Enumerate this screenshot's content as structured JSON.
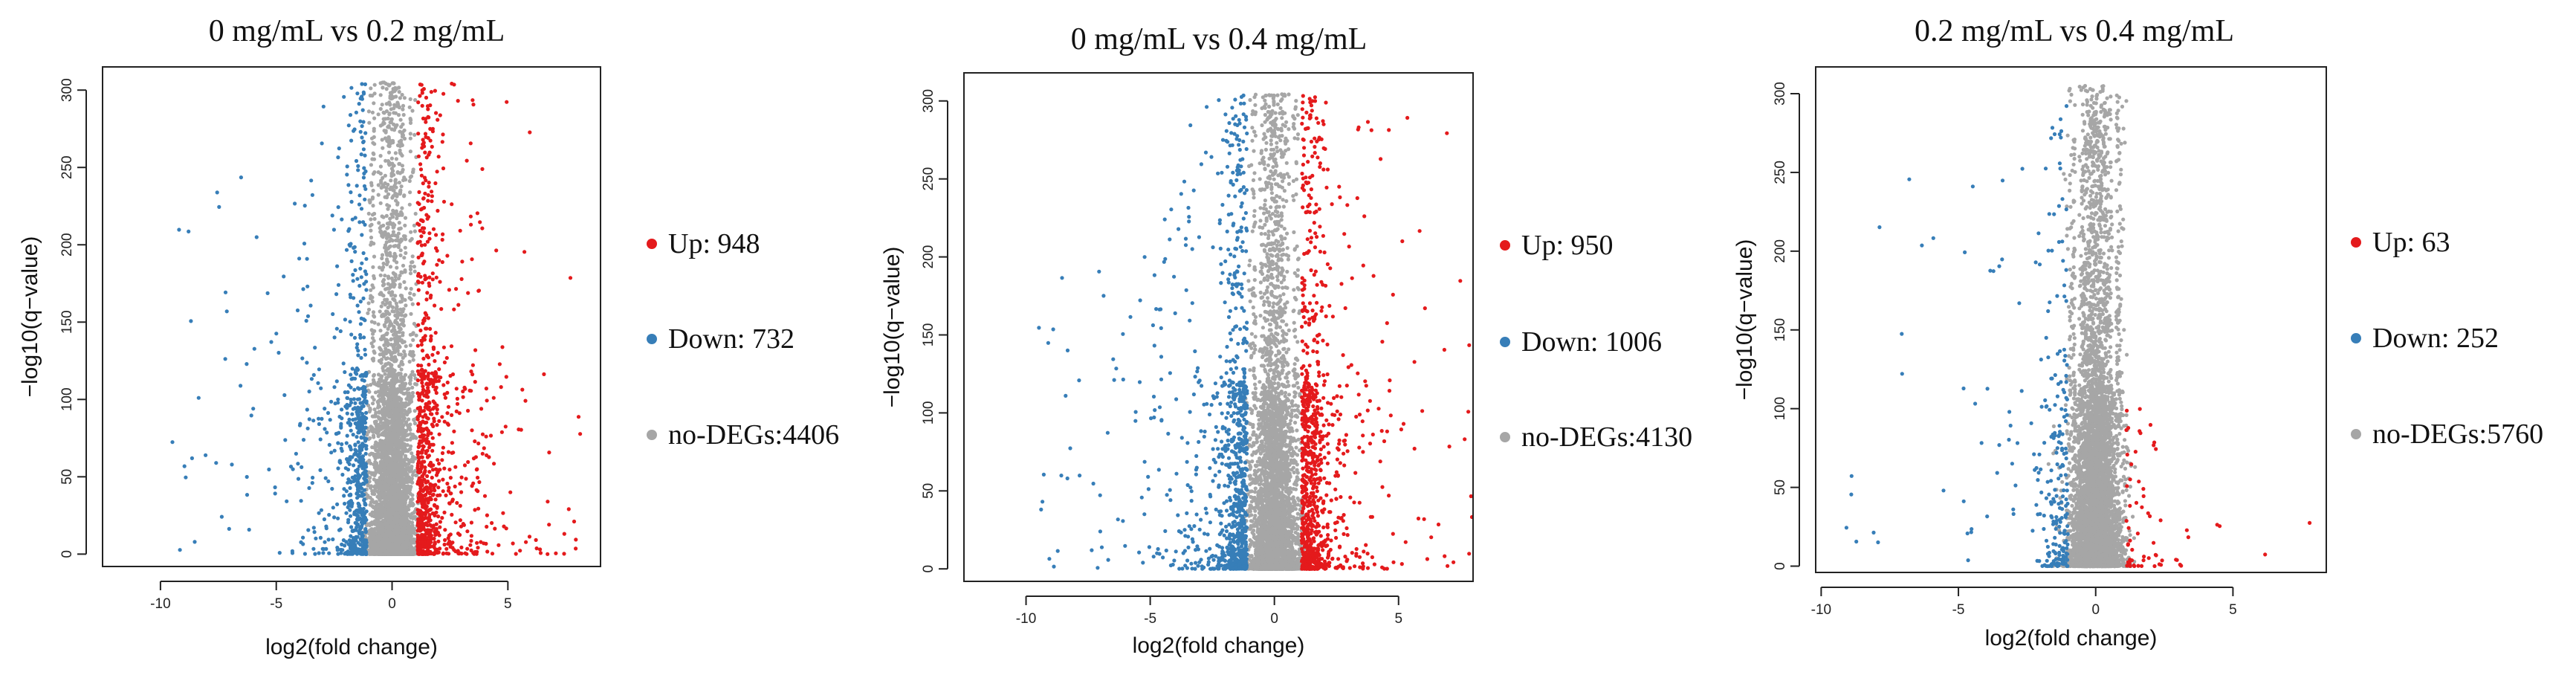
{
  "colors": {
    "up": "#e41a1c",
    "down": "#377eb8",
    "no_deg": "#a6a6a6"
  },
  "chart_data": [
    {
      "type": "scatter",
      "title": "0 mg/mL  vs 0.2 mg/mL",
      "xlabel": "log2(fold change)",
      "ylabel": "−log10(q−value)",
      "xlim": [
        -12.5,
        9.0
      ],
      "ylim": [
        -8,
        315
      ],
      "xticks": [
        -10,
        -5,
        0,
        5
      ],
      "yticks": [
        0,
        50,
        100,
        150,
        200,
        250,
        300
      ],
      "legend_position": "right",
      "legend": [
        {
          "label": "Up: 948",
          "color": "up"
        },
        {
          "label": "Down: 732",
          "color": "down"
        },
        {
          "label": "no-DEGs:4406",
          "color": "no_deg"
        }
      ],
      "series": [
        {
          "name": "Up",
          "count": 948
        },
        {
          "name": "Down",
          "count": 732
        },
        {
          "name": "no-DEGs",
          "count": 4406
        }
      ]
    },
    {
      "type": "scatter",
      "title": "0 mg/mL  vs 0.4 mg/mL",
      "xlabel": "log2(fold change)",
      "ylabel": "−log10(q−value)",
      "xlim": [
        -12.5,
        8.0
      ],
      "ylim": [
        -8,
        318
      ],
      "xticks": [
        -10,
        -5,
        0,
        5
      ],
      "yticks": [
        0,
        50,
        100,
        150,
        200,
        250,
        300
      ],
      "legend_position": "right",
      "legend": [
        {
          "label": "Up: 950",
          "color": "up"
        },
        {
          "label": "Down: 1006",
          "color": "down"
        },
        {
          "label": "no-DEGs:4130",
          "color": "no_deg"
        }
      ],
      "series": [
        {
          "name": "Up",
          "count": 950
        },
        {
          "name": "Down",
          "count": 1006
        },
        {
          "name": "no-DEGs",
          "count": 4130
        }
      ]
    },
    {
      "type": "scatter",
      "title": "0.2 mg/mL  vs 0.4 mg/mL",
      "xlabel": "log2(fold change)",
      "ylabel": "−log10(q−value)",
      "xlim": [
        -10.2,
        8.4
      ],
      "ylim": [
        -4,
        317
      ],
      "xticks": [
        -10,
        -5,
        0,
        5
      ],
      "yticks": [
        0,
        50,
        100,
        150,
        200,
        250,
        300
      ],
      "legend_position": "right",
      "legend": [
        {
          "label": "Up: 63",
          "color": "up"
        },
        {
          "label": "Down: 252",
          "color": "down"
        },
        {
          "label": "no-DEGs:5760",
          "color": "no_deg"
        }
      ],
      "series": [
        {
          "name": "Up",
          "count": 63
        },
        {
          "name": "Down",
          "count": 252
        },
        {
          "name": "no-DEGs",
          "count": 5760
        }
      ]
    }
  ]
}
